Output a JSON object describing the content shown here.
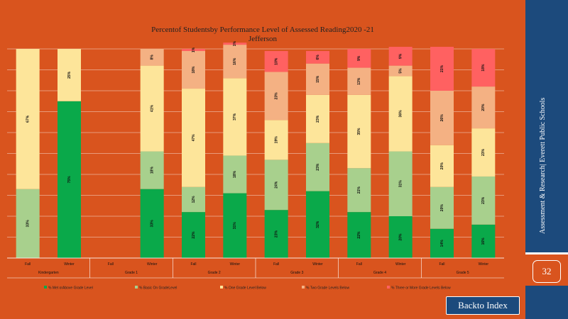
{
  "chart_data": {
    "type": "bar",
    "stacked": true,
    "title_line1": "Percentof Studentsby Performance Level of Assessed Reading2020   -21",
    "title_line2": "Jefferson",
    "ylim": [
      0,
      100
    ],
    "grid": true,
    "legend_position": "bottom",
    "groups": [
      {
        "label": "Kindergarten",
        "bars": [
          {
            "label": "Fall",
            "values": [
              0,
              33,
              67,
              0,
              0
            ]
          },
          {
            "label": "Winter",
            "values": [
              75,
              0,
              25,
              0,
              0
            ]
          }
        ]
      },
      {
        "label": "Grade      1",
        "bars": [
          {
            "label": "Fall",
            "values": [
              0,
              0,
              0,
              0,
              0
            ]
          },
          {
            "label": "Winter",
            "values": [
              33,
              18,
              41,
              8,
              0
            ]
          }
        ]
      },
      {
        "label": "Grade      2",
        "bars": [
          {
            "label": "Fall",
            "values": [
              22,
              12,
              47,
              18,
              1
            ]
          },
          {
            "label": "Winter",
            "values": [
              31,
              18,
              37,
              16,
              1
            ]
          }
        ]
      },
      {
        "label": "Grade      3",
        "bars": [
          {
            "label": "Fall",
            "values": [
              23,
              24,
              19,
              23,
              10
            ]
          },
          {
            "label": "Winter",
            "values": [
              32,
              23,
              23,
              15,
              6
            ]
          }
        ]
      },
      {
        "label": "Grade      4",
        "bars": [
          {
            "label": "Fall",
            "values": [
              22,
              21,
              35,
              13,
              9
            ]
          },
          {
            "label": "Winter",
            "values": [
              20,
              31,
              36,
              5,
              9
            ]
          }
        ]
      },
      {
        "label": "Grade      5",
        "bars": [
          {
            "label": "Fall",
            "values": [
              14,
              20,
              20,
              26,
              21
            ]
          },
          {
            "label": "Winter",
            "values": [
              16,
              23,
              23,
              20,
              18
            ]
          }
        ]
      }
    ],
    "series": [
      {
        "name": "%   Met    orAbove       Grade        Level",
        "color": "#0aa94a"
      },
      {
        "name": "%   Basic     On   GradeLevel",
        "color": "#a8d08d"
      },
      {
        "name": "%   One     Grade      Level    Below",
        "color": "#fde59a"
      },
      {
        "name": "%   Two     Grade     Levels    Below",
        "color": "#f4b183"
      },
      {
        "name": "%   Three    or  More    Grade     Levels     Below",
        "color": "#ff6161"
      }
    ]
  },
  "sidebar": {
    "vertical_text": "Assessment & Research|   Everett  Public Schools",
    "page_number": "32"
  },
  "back_button": {
    "label": "Backto Index"
  }
}
